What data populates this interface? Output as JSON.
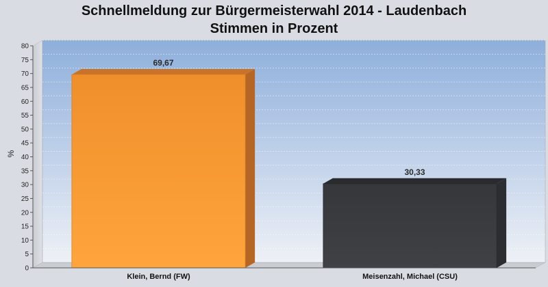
{
  "chart_data": {
    "type": "bar",
    "title_line1": "Schnellmeldung zur Bürgermeisterwahl 2014 - Laudenbach",
    "title_line2": "Stimmen in Prozent",
    "ylabel": "%",
    "xlabel": "",
    "categories": [
      "Klein, Bernd (FW)",
      "Meisenzahl, Michael (CSU)"
    ],
    "values": [
      69.67,
      30.33
    ],
    "value_labels": [
      "69,67",
      "30,33"
    ],
    "bar_colors": [
      "#f5962f",
      "#3a3b3e"
    ],
    "ylim": [
      0,
      80
    ],
    "yticks": [
      0,
      5,
      10,
      15,
      20,
      25,
      30,
      35,
      40,
      45,
      50,
      55,
      60,
      65,
      70,
      75,
      80
    ],
    "grid": true,
    "legend": "none"
  }
}
